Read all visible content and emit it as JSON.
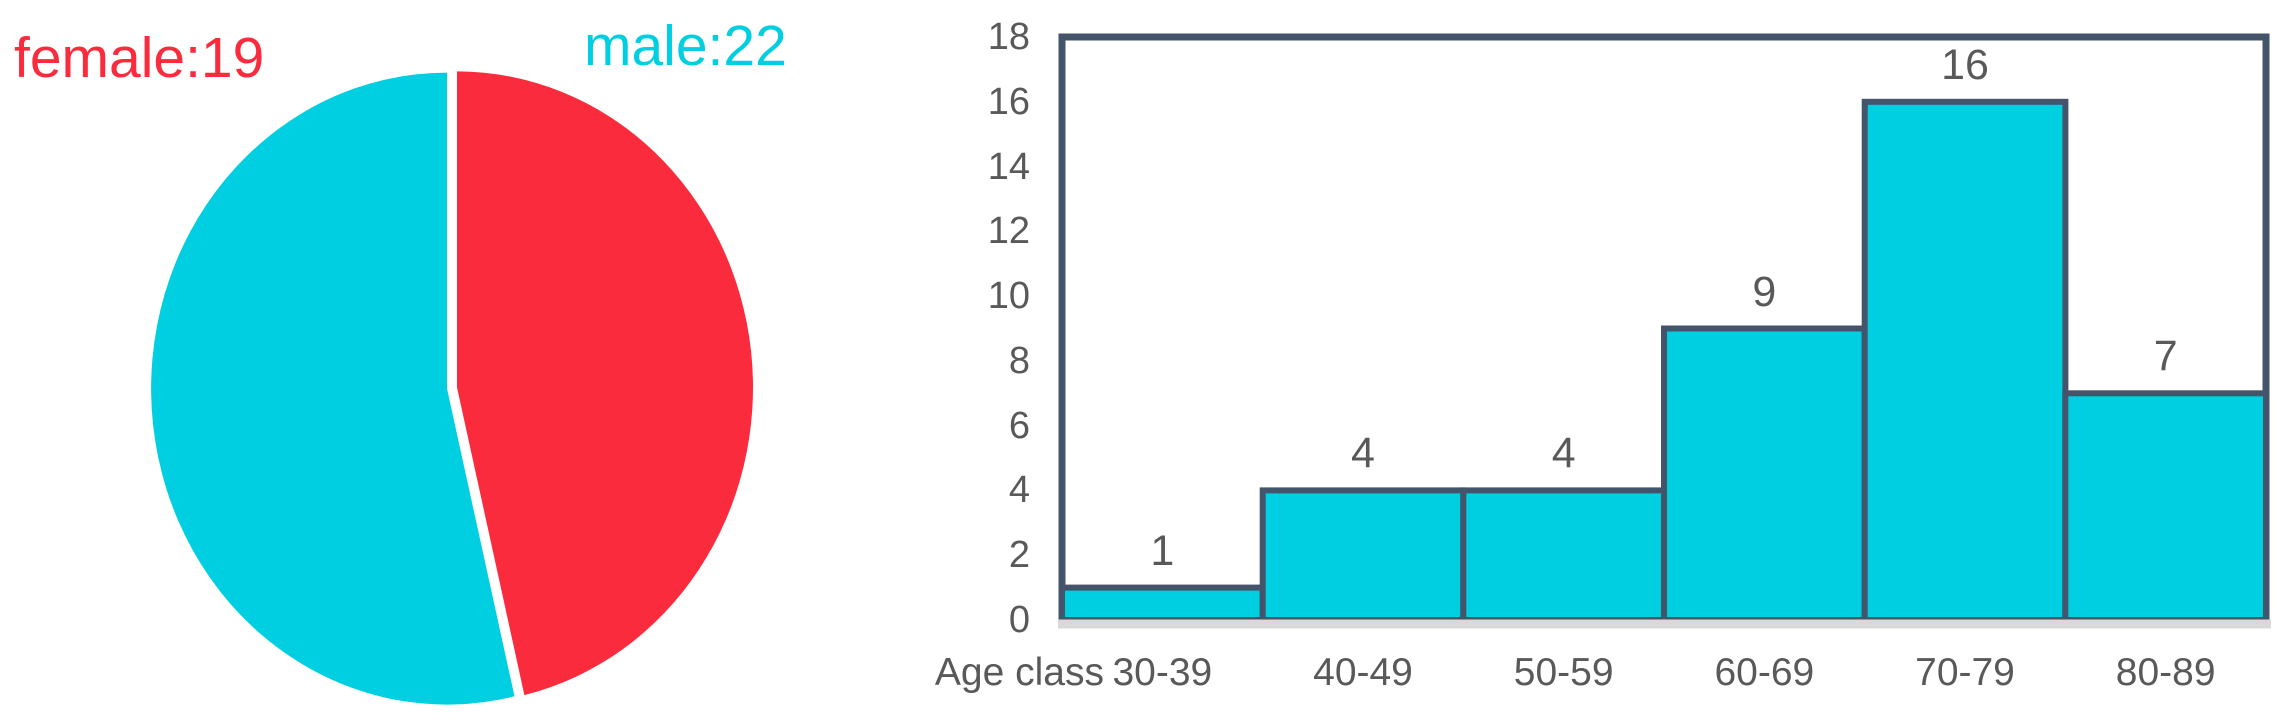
{
  "page": {
    "background": "#ffffff"
  },
  "chart_data": [
    {
      "type": "pie",
      "title": "",
      "labels": [
        "female",
        "male"
      ],
      "values": [
        19,
        22
      ],
      "data_labels": [
        "female:19",
        "male:22"
      ],
      "slice_colors": [
        "#FA2B3C",
        "#00CFE2"
      ],
      "start_angle_deg": 0,
      "direction": "clockwise",
      "gap_color": "#ffffff",
      "legend_position": "none"
    },
    {
      "type": "bar",
      "subtype": "histogram",
      "title": "",
      "categories": [
        "30-39",
        "40-49",
        "50-59",
        "60-69",
        "70-79",
        "80-89"
      ],
      "values": [
        1,
        4,
        4,
        9,
        16,
        7
      ],
      "value_labels": [
        "1",
        "4",
        "4",
        "9",
        "16",
        "7"
      ],
      "xlabel": "Age class",
      "ylabel": "",
      "ylim": [
        0,
        18
      ],
      "y_ticks": [
        0,
        2,
        4,
        6,
        8,
        10,
        12,
        14,
        16,
        18
      ],
      "grid": false,
      "bar_fill": "#00CFE2",
      "bar_border": "#44546A",
      "plot_border_color": "#44546A",
      "axis_line_color": "#D9D9D9",
      "tick_label_color": "#595959",
      "value_label_color": "#595959",
      "legend_position": "none"
    }
  ]
}
